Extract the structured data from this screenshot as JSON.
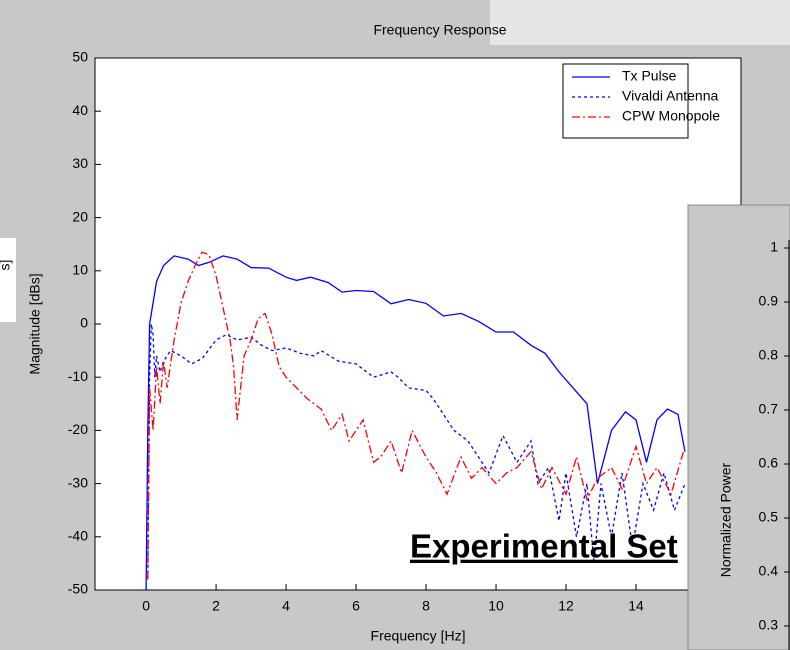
{
  "chart_data": [
    {
      "type": "line",
      "title": "Frequency Response",
      "xlabel": "Frequency [Hz]",
      "ylabel": "Magnitude [dBs]",
      "xlim": [
        -1.46,
        17
      ],
      "ylim": [
        -50,
        50
      ],
      "xticks": [
        0,
        2,
        4,
        6,
        8,
        10,
        12,
        14
      ],
      "yticks": [
        -50,
        -40,
        -30,
        -20,
        -10,
        0,
        10,
        20,
        30,
        40,
        50
      ],
      "legend": "upper right",
      "series": [
        {
          "name": "Tx Pulse",
          "color": "#0000ff",
          "line_style": "solid",
          "x": [
            0,
            0.05,
            0.1,
            0.3,
            0.5,
            0.8,
            1.2,
            1.5,
            1.8,
            2.2,
            2.6,
            3.0,
            3.5,
            4.0,
            4.3,
            4.7,
            5.2,
            5.6,
            6.0,
            6.5,
            7.0,
            7.5,
            8.0,
            8.5,
            9.0,
            9.5,
            10,
            10.5,
            11.0,
            11.4,
            11.8,
            12.2,
            12.6,
            12.9,
            13.3,
            13.7,
            14.0,
            14.3,
            14.6,
            14.9,
            15.2,
            15.4
          ],
          "values": [
            -50,
            -20,
            0,
            8,
            11,
            12.8,
            12.2,
            11,
            11.6,
            12.8,
            12.2,
            10.6,
            10.5,
            8.8,
            8.2,
            8.8,
            7.8,
            6.0,
            6.3,
            6.1,
            3.8,
            4.6,
            3.9,
            1.5,
            2.0,
            0.5,
            -1.5,
            -1.5,
            -4,
            -5.5,
            -9,
            -12,
            -15,
            -30,
            -20,
            -16.5,
            -18,
            -26,
            -18,
            -16,
            -17,
            -24
          ]
        },
        {
          "name": "Vivaldi Antenna",
          "color": "#0000ff",
          "line_style": "dotted",
          "x": [
            0.05,
            0.1,
            0.15,
            0.2,
            0.25,
            0.3,
            0.4,
            0.5,
            0.7,
            1.0,
            1.3,
            1.6,
            2.0,
            2.3,
            2.6,
            3.0,
            3.3,
            3.6,
            4.0,
            4.4,
            4.8,
            5.0,
            5.5,
            6.0,
            6.5,
            7.0,
            7.2,
            7.5,
            8.0,
            8.2,
            8.5,
            8.8,
            9.2,
            9.5,
            9.8,
            10.2,
            10.6,
            11.0,
            11.2,
            11.5,
            11.8,
            12.0,
            12.3,
            12.6,
            12.8,
            13.0,
            13.3,
            13.6,
            13.9,
            14.2,
            14.5,
            14.8,
            15.1,
            15.4
          ],
          "values": [
            -48,
            -10,
            0,
            -2,
            -10,
            -6,
            -9,
            -7,
            -5,
            -6,
            -7.5,
            -6.5,
            -3,
            -2,
            -3,
            -2.5,
            -4,
            -5,
            -4.5,
            -5.5,
            -6,
            -5,
            -7,
            -7.5,
            -10,
            -9,
            -10,
            -12,
            -12.5,
            -14,
            -17,
            -20,
            -22,
            -25,
            -28,
            -21,
            -26,
            -22,
            -30,
            -27,
            -37,
            -28,
            -40,
            -30,
            -45,
            -30,
            -40,
            -28,
            -42,
            -30,
            -35,
            -28,
            -35,
            -30
          ]
        },
        {
          "name": "CPW Monopole",
          "color": "#ff0000",
          "line_style": "dashdot",
          "x": [
            0.05,
            0.1,
            0.2,
            0.3,
            0.4,
            0.5,
            0.6,
            0.8,
            1.0,
            1.2,
            1.4,
            1.6,
            1.8,
            2.0,
            2.2,
            2.4,
            2.5,
            2.6,
            2.8,
            3.0,
            3.2,
            3.4,
            3.6,
            3.8,
            4.0,
            4.3,
            4.6,
            5.0,
            5.3,
            5.6,
            5.8,
            6.2,
            6.5,
            6.7,
            7.0,
            7.3,
            7.6,
            8.0,
            8.3,
            8.6,
            9.0,
            9.3,
            9.6,
            10.0,
            10.3,
            10.6,
            11.0,
            11.3,
            11.6,
            12.0,
            12.3,
            12.6,
            12.9,
            13.3,
            13.6,
            14.0,
            14.3,
            14.6,
            15.0,
            15.4
          ],
          "values": [
            -48,
            -12,
            -20,
            -8,
            -15,
            -7,
            -12,
            -3,
            4,
            8,
            11,
            13.5,
            13,
            9,
            3,
            -3,
            -8,
            -18,
            -6,
            -3,
            1,
            2,
            -2,
            -8,
            -10,
            -12,
            -14,
            -16,
            -20,
            -17,
            -22,
            -18,
            -26,
            -25,
            -22,
            -28,
            -20,
            -25,
            -28,
            -32,
            -25,
            -29,
            -27,
            -30,
            -28,
            -27,
            -24,
            -31,
            -27,
            -32,
            -25,
            -33,
            -29,
            -27,
            -31,
            -23,
            -30,
            -27,
            -32,
            -23
          ]
        }
      ]
    },
    {
      "type": "line",
      "ylabel": "Normalized Power",
      "ylim": [
        0.2,
        1
      ],
      "yticks": [
        0.3,
        0.4,
        0.5,
        0.6,
        0.7,
        0.8,
        0.9,
        1
      ],
      "series": []
    }
  ],
  "overlay_text": "Experimental Set",
  "side_label": "s]"
}
